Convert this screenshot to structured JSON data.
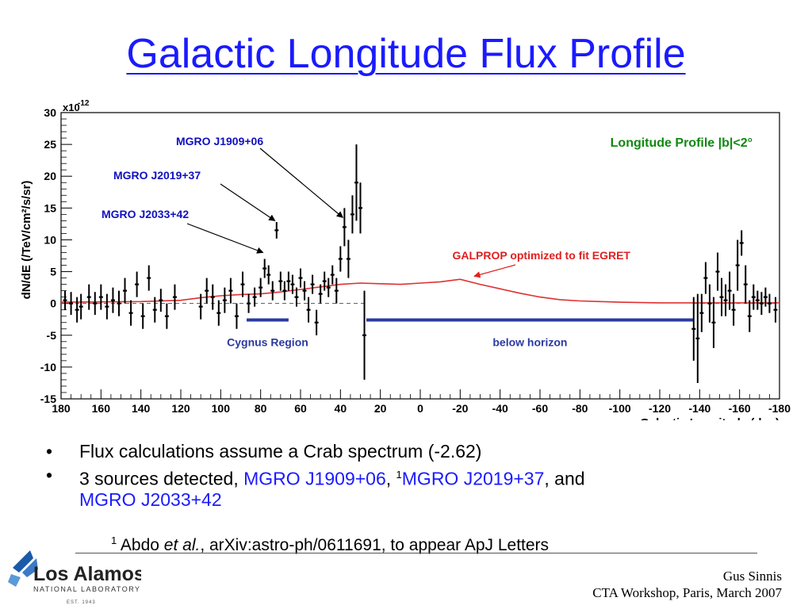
{
  "slide": {
    "title": "Galactic Longitude Flux Profile",
    "bullets": {
      "b1": "Flux calculations assume a Crab spectrum (-2.62)",
      "b2_prefix": "3 sources detected, ",
      "b2_src1": "MGRO J1909+06",
      "b2_sep1": ", ",
      "b2_sup": "1",
      "b2_src2": "MGRO J2019+37",
      "b2_sep2": ", and",
      "b2_src3": "MGRO J2033+42"
    },
    "footnote": {
      "sup": "1",
      "text1": " Abdo ",
      "italic": "et al.",
      "text2": ", arXiv:astro-ph/0611691, to appear ApJ Letters"
    },
    "credit": {
      "line1": "Gus Sinnis",
      "line2": "CTA Workshop, Paris, March 2007"
    },
    "logo": {
      "name": "Los Alamos",
      "sub": "NATIONAL LABORATORY",
      "est": "EST. 1943"
    }
  },
  "chart_data": {
    "type": "scatter",
    "title": "",
    "xlabel": "Galactic Longitude (deg)",
    "ylabel": "dN/dE (/TeV/cm²/s/sr)",
    "y_scale_label": "x10",
    "y_scale_exp": "-12",
    "xlim": [
      180,
      -180
    ],
    "ylim": [
      -15,
      30
    ],
    "x_ticks": [
      180,
      160,
      140,
      120,
      100,
      80,
      60,
      40,
      20,
      0,
      -20,
      -40,
      -60,
      -80,
      -100,
      -120,
      -140,
      -160,
      -180
    ],
    "y_ticks": [
      -15,
      -10,
      -5,
      0,
      5,
      10,
      15,
      20,
      25,
      30
    ],
    "legend_text": "Longitude Profile |b|<2°",
    "colors": {
      "points": "#000000",
      "galprop": "#e03030",
      "bars": "#2a3aa0",
      "annot_blue": "#1010c0",
      "annot_green": "#118811",
      "annot_red": "#e02020"
    },
    "points": [
      {
        "x": 178,
        "y": 0.5,
        "e": 1.5
      },
      {
        "x": 175,
        "y": 0,
        "e": 1.8
      },
      {
        "x": 172,
        "y": -1,
        "e": 2
      },
      {
        "x": 170,
        "y": -0.5,
        "e": 2
      },
      {
        "x": 166,
        "y": 1,
        "e": 2
      },
      {
        "x": 163,
        "y": 0,
        "e": 1.8
      },
      {
        "x": 160,
        "y": 1,
        "e": 2
      },
      {
        "x": 157,
        "y": -0.5,
        "e": 2
      },
      {
        "x": 154,
        "y": 0.5,
        "e": 2
      },
      {
        "x": 151,
        "y": 0,
        "e": 2
      },
      {
        "x": 148,
        "y": 2,
        "e": 2
      },
      {
        "x": 145,
        "y": -1.5,
        "e": 2
      },
      {
        "x": 142,
        "y": 3,
        "e": 2
      },
      {
        "x": 139,
        "y": -2,
        "e": 2
      },
      {
        "x": 136,
        "y": 4,
        "e": 2
      },
      {
        "x": 133,
        "y": -1,
        "e": 2
      },
      {
        "x": 130,
        "y": 0.5,
        "e": 1.8
      },
      {
        "x": 127,
        "y": -2,
        "e": 2
      },
      {
        "x": 123,
        "y": 1,
        "e": 2
      },
      {
        "x": 110,
        "y": -0.5,
        "e": 2
      },
      {
        "x": 107,
        "y": 2,
        "e": 2
      },
      {
        "x": 104,
        "y": 1,
        "e": 2
      },
      {
        "x": 101,
        "y": -1.5,
        "e": 2
      },
      {
        "x": 98,
        "y": 0.5,
        "e": 2
      },
      {
        "x": 95,
        "y": 2,
        "e": 2
      },
      {
        "x": 92,
        "y": -2,
        "e": 2
      },
      {
        "x": 89,
        "y": 3,
        "e": 2
      },
      {
        "x": 86,
        "y": 0,
        "e": 1.5
      },
      {
        "x": 83,
        "y": 1,
        "e": 1.5
      },
      {
        "x": 80,
        "y": 2.5,
        "e": 1.5
      },
      {
        "x": 78,
        "y": 5.5,
        "e": 1.5
      },
      {
        "x": 76,
        "y": 4.5,
        "e": 1.5
      },
      {
        "x": 74,
        "y": 2,
        "e": 1.5
      },
      {
        "x": 72,
        "y": 11.5,
        "e": 1.3
      },
      {
        "x": 70,
        "y": 3.5,
        "e": 1.5
      },
      {
        "x": 68,
        "y": 2,
        "e": 1.5
      },
      {
        "x": 66,
        "y": 3.5,
        "e": 1.5
      },
      {
        "x": 64,
        "y": 3,
        "e": 1.5
      },
      {
        "x": 62,
        "y": 1,
        "e": 1.5
      },
      {
        "x": 60,
        "y": 4,
        "e": 1.5
      },
      {
        "x": 58,
        "y": 2,
        "e": 1.5
      },
      {
        "x": 56,
        "y": -1,
        "e": 2
      },
      {
        "x": 54,
        "y": 3,
        "e": 1.5
      },
      {
        "x": 52,
        "y": -3,
        "e": 2
      },
      {
        "x": 50,
        "y": 1.5,
        "e": 1.5
      },
      {
        "x": 48,
        "y": 3.5,
        "e": 1.5
      },
      {
        "x": 46,
        "y": 2.5,
        "e": 1.5
      },
      {
        "x": 44,
        "y": 4.5,
        "e": 1.5
      },
      {
        "x": 42,
        "y": 2,
        "e": 2
      },
      {
        "x": 40,
        "y": 7,
        "e": 2
      },
      {
        "x": 38,
        "y": 12,
        "e": 3
      },
      {
        "x": 36,
        "y": 7,
        "e": 3
      },
      {
        "x": 34,
        "y": 14,
        "e": 3
      },
      {
        "x": 32,
        "y": 19,
        "e": 6
      },
      {
        "x": 30,
        "y": 15,
        "e": 4
      },
      {
        "x": 28,
        "y": -5,
        "e": 7
      },
      {
        "x": -137,
        "y": -4,
        "e": 5
      },
      {
        "x": -139,
        "y": -5.5,
        "e": 7
      },
      {
        "x": -141,
        "y": -1.5,
        "e": 3
      },
      {
        "x": -143,
        "y": 4,
        "e": 2.5
      },
      {
        "x": -145,
        "y": 0,
        "e": 3
      },
      {
        "x": -147,
        "y": -3,
        "e": 4
      },
      {
        "x": -149,
        "y": 5,
        "e": 3
      },
      {
        "x": -151,
        "y": 1,
        "e": 3
      },
      {
        "x": -153,
        "y": 0.5,
        "e": 2.5
      },
      {
        "x": -155,
        "y": 2,
        "e": 3
      },
      {
        "x": -157,
        "y": -1,
        "e": 2.5
      },
      {
        "x": -159,
        "y": 6,
        "e": 4
      },
      {
        "x": -161,
        "y": 9.5,
        "e": 2
      },
      {
        "x": -163,
        "y": 3,
        "e": 3
      },
      {
        "x": -165,
        "y": -2,
        "e": 2.5
      },
      {
        "x": -167,
        "y": 1,
        "e": 2
      },
      {
        "x": -169,
        "y": 0.5,
        "e": 1.5
      },
      {
        "x": -171,
        "y": 0,
        "e": 1.8
      },
      {
        "x": -173,
        "y": 1,
        "e": 1.5
      },
      {
        "x": -175,
        "y": 0,
        "e": 1.5
      },
      {
        "x": -178,
        "y": -1,
        "e": 2
      }
    ],
    "galprop": {
      "label": "GALPROP optimized to fit EGRET",
      "x": [
        180,
        140,
        120,
        110,
        100,
        90,
        80,
        70,
        60,
        50,
        40,
        30,
        20,
        10,
        0,
        -10,
        -20,
        -30,
        -40,
        -50,
        -60,
        -70,
        -80,
        -90,
        -100,
        -120,
        -140,
        -160,
        -180
      ],
      "y": [
        0.2,
        0.3,
        0.5,
        0.9,
        1.2,
        1.4,
        1.5,
        1.8,
        2.2,
        2.6,
        3.0,
        3.2,
        3.1,
        3.0,
        3.2,
        3.4,
        3.8,
        3.0,
        2.3,
        1.6,
        1.0,
        0.6,
        0.4,
        0.3,
        0.2,
        0.1,
        0.1,
        0.1,
        0.1
      ]
    },
    "dashed_zero": [
      {
        "x0": 180,
        "x1": 28,
        "y": 0
      },
      {
        "x0": -137,
        "x1": -180,
        "y": 0
      }
    ],
    "regions": [
      {
        "label": "Cygnus Region",
        "x0": 87,
        "x1": 66,
        "y": -2.6
      },
      {
        "label": "below horizon",
        "x0": 27,
        "x1": -137,
        "y": -2.6
      }
    ],
    "annotations": [
      {
        "label": "MGRO J1909+06",
        "target": {
          "x": 38,
          "y": 13
        }
      },
      {
        "label": "MGRO J2019+37",
        "target": {
          "x": 72,
          "y": 12.5
        }
      },
      {
        "label": "MGRO J2033+42",
        "target": {
          "x": 78,
          "y": 7.5
        }
      }
    ]
  }
}
